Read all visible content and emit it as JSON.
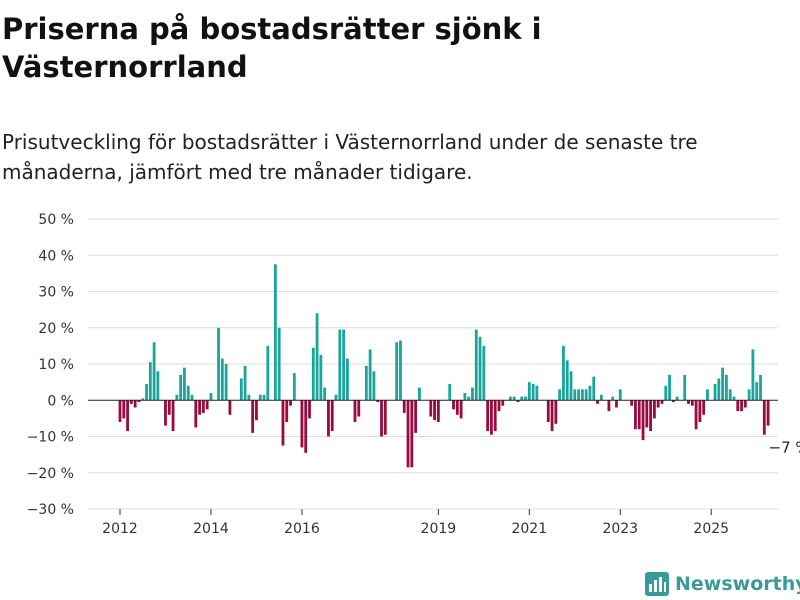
{
  "colors": {
    "positive": "#1aa59a",
    "negative": "#9b0a3f",
    "grid": "#dddddd",
    "brand": "#3a9a97"
  },
  "brand": {
    "name": "Newsworthy",
    "icon": "newsworthy-logo-icon"
  },
  "chart_data": {
    "type": "bar",
    "title": "Priserna på bostadsrätter sjönk i Västernorrland",
    "subtitle": "Prisutveckling för bostadsrätter i Västernorrland under de senaste tre månaderna, jämfört med tre månader tidigare.",
    "xlabel": "",
    "ylabel": "",
    "ylim": [
      -30,
      50
    ],
    "grid": true,
    "y_ticks": [
      "−30 %",
      "−20 %",
      "−10 %",
      "0 %",
      "10 %",
      "20 %",
      "30 %",
      "40 %",
      "50 %"
    ],
    "y_tick_values": [
      -30,
      -20,
      -10,
      0,
      10,
      20,
      30,
      40,
      50
    ],
    "x_ticks": [
      "2012",
      "2014",
      "2016",
      "2019",
      "2021",
      "2023",
      "2025"
    ],
    "x_tick_values": [
      "2012-01",
      "2014-01",
      "2016-01",
      "2019-01",
      "2021-01",
      "2023-01",
      "2025-01"
    ],
    "x_start": "2011-10",
    "annotation": {
      "text": "−7 %",
      "value": -7
    },
    "values": [
      0,
      0,
      0,
      -6,
      -5,
      -8.5,
      -1,
      -2,
      -0.5,
      0.5,
      4.5,
      10.5,
      16,
      8,
      0,
      -7,
      -4,
      -8.5,
      1.5,
      7,
      9,
      4,
      1.5,
      -7.5,
      -4,
      -3.5,
      -2.5,
      2,
      0,
      20,
      11.5,
      10,
      -4,
      0,
      0,
      6,
      9.5,
      1.5,
      -9,
      -5.5,
      1.5,
      1.5,
      15,
      0,
      37.5,
      20,
      -12.5,
      -6,
      -1.5,
      7.5,
      0,
      -13,
      -14.5,
      -5,
      14.5,
      24,
      12.5,
      3.5,
      -10,
      -8.5,
      1.5,
      19.5,
      19.5,
      11.5,
      0,
      -6,
      -4.5,
      0,
      9.5,
      14,
      8,
      -0.5,
      -10,
      -9.5,
      0,
      0,
      16,
      16.5,
      -3.5,
      -18.5,
      -18.5,
      -9,
      3.5,
      0,
      0,
      -4.5,
      -5.5,
      -6,
      0,
      0,
      4.5,
      -2.5,
      -4,
      -5,
      2,
      1,
      3.5,
      19.5,
      17.5,
      15,
      -8.5,
      -9.5,
      -8.5,
      -3,
      -1.5,
      0,
      1,
      1,
      -0.5,
      1,
      1,
      5,
      4.5,
      4,
      0,
      0,
      -6,
      -8.5,
      -6.5,
      3,
      15,
      11,
      8,
      3,
      3,
      3,
      3,
      4,
      6.5,
      -1,
      1.5,
      0,
      -3,
      1,
      -2,
      3,
      0,
      0,
      -1.5,
      -8,
      -8,
      -11,
      -7.5,
      -8.5,
      -5,
      -2,
      -1,
      4,
      7,
      -0.5,
      1,
      0,
      7,
      -1,
      -1.5,
      -8,
      -6,
      -4,
      3,
      0,
      4.5,
      6,
      9,
      7,
      3,
      1,
      -3,
      -3,
      -2,
      3,
      14,
      5,
      7,
      -9.5,
      -7
    ]
  }
}
